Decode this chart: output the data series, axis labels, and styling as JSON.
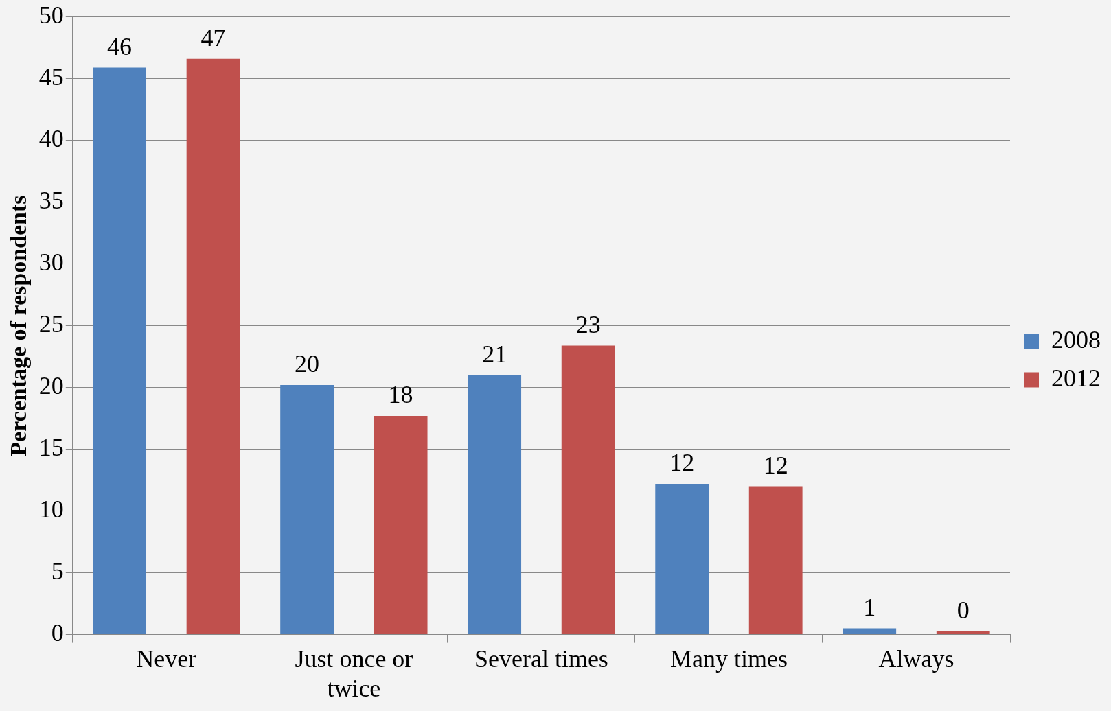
{
  "chart_data": {
    "type": "bar",
    "ylabel": "Percentage of respondents",
    "categories": [
      "Never",
      "Just once or twice",
      "Several times",
      "Many times",
      "Always"
    ],
    "series": [
      {
        "name": "2008",
        "color": "#4f81bd",
        "values": [
          45.9,
          20.2,
          21.0,
          12.2,
          0.5
        ],
        "value_labels": [
          "46",
          "20",
          "21",
          "12",
          "1"
        ]
      },
      {
        "name": "2012",
        "color": "#c0504d",
        "values": [
          46.6,
          17.7,
          23.4,
          12.0,
          0.3
        ],
        "value_labels": [
          "47",
          "18",
          "23",
          "12",
          "0"
        ]
      }
    ],
    "ylim": [
      0,
      50
    ],
    "yticks": [
      0,
      5,
      10,
      15,
      20,
      25,
      30,
      35,
      40,
      45,
      50
    ],
    "grid": "y",
    "legend": "right"
  }
}
